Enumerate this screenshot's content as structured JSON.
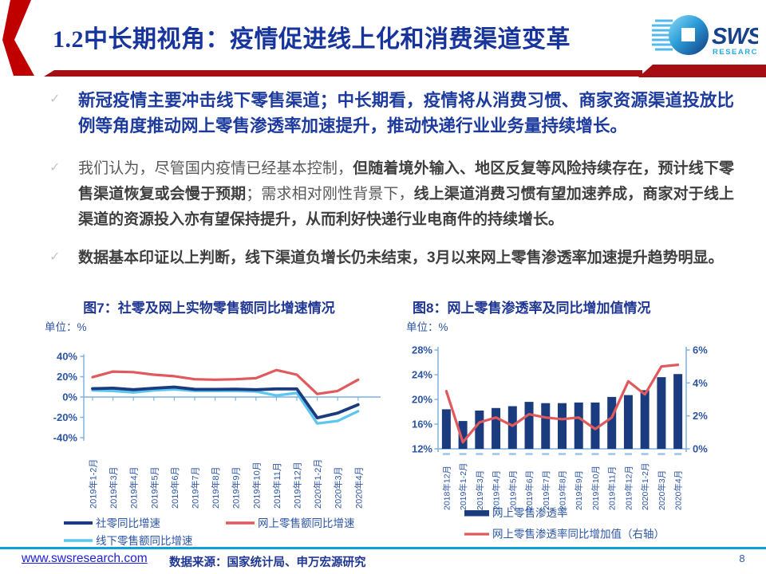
{
  "colors": {
    "brand_red_chevron": "#C00000",
    "brand_dark_red_bar": "#A50E13",
    "title_blue": "#17349C",
    "bullet_navy": "#1D3B9E",
    "body_gray": "#595959",
    "body_dark_gray": "#3F3F3F",
    "chart_navy": "#1A3B7E",
    "chart_red": "#E0595C",
    "chart_light_blue": "#5BC6F2",
    "axis_light_blue": "#7FB2DF",
    "axis_label_blue": "#2C55A5",
    "footer_rule_cyan": "#0FA0D8",
    "link_blue": "#2020DD",
    "logo_navy": "#16418C",
    "logo_cyan": "#29ABE2"
  },
  "header": {
    "title_number": "1.2",
    "title_text": "中长期视角：疫情促进线上化和消费渠道变革",
    "logo_sws": "SWS",
    "logo_research": "RESEARCH"
  },
  "bullet_icon": "✓",
  "bullets": [
    {
      "segments": [
        {
          "style": "navy-bold",
          "text": "新冠疫情主要冲击线下零售渠道；中长期看，疫情将从消费习惯、商家资源渠道投放比例等角度推动网上零售渗透率加速提升，推动快递行业业务量持续增长。"
        }
      ]
    },
    {
      "segments": [
        {
          "style": "normal",
          "text": "我们认为，尽管国内疫情已经基本控制，"
        },
        {
          "style": "bold",
          "text": "但随着境外输入、地区反复等风险持续存在，预计线下零售渠道恢复或会慢于预期"
        },
        {
          "style": "normal",
          "text": "；需求相对刚性背景下，"
        },
        {
          "style": "bold",
          "text": "线上渠道消费习惯有望加速养成，商家对于线上渠道的资源投入亦有望保持提升，从而利好快递行业电商件的持续增长。"
        }
      ]
    },
    {
      "segments": [
        {
          "style": "bold",
          "text": "数据基本印证以上判断，线下渠道负增长仍未结束，3月以来网上零售渗透率加速提升趋势明显。"
        }
      ]
    }
  ],
  "chart_data": [
    {
      "type": "line",
      "title": "图7：社零及网上实物零售额同比增速情况",
      "unit_label": "单位：%",
      "categories": [
        "2019年1-2月",
        "2019年3月",
        "2019年4月",
        "2019年5月",
        "2019年6月",
        "2019年7月",
        "2019年8月",
        "2019年9月",
        "2019年10月",
        "2019年11月",
        "2019年12月",
        "2020年1-2月",
        "2020年3月",
        "2020年4月"
      ],
      "series": [
        {
          "name": "社零同比增速",
          "color": "#1A3B7E",
          "values": [
            8.2,
            8.7,
            7.2,
            8.6,
            9.8,
            7.6,
            7.5,
            7.8,
            7.2,
            8.0,
            8.0,
            -20.5,
            -15.8,
            -7.5
          ]
        },
        {
          "name": "网上零售额同比增速",
          "color": "#E0595C",
          "values": [
            19.5,
            25,
            24.5,
            22,
            20.5,
            17.5,
            17,
            17.5,
            18.5,
            26.5,
            22,
            3,
            6,
            17
          ]
        },
        {
          "name": "线下零售额同比增速",
          "color": "#5BC6F2",
          "values": [
            6.5,
            6,
            4.5,
            6.5,
            7.5,
            6,
            6,
            6,
            5.5,
            1.5,
            4,
            -26,
            -23.5,
            -14
          ]
        }
      ],
      "ylim": [
        -40,
        40
      ],
      "ytick_step": 20,
      "grid": false,
      "legend_position": "bottom"
    },
    {
      "type": "bar+line",
      "title": "图8：网上零售渗透率及同比增加值情况",
      "unit_label": "单位：%",
      "categories": [
        "2018年12月",
        "2019年1-2月",
        "2019年3月",
        "2019年4月",
        "2019年5月",
        "2019年6月",
        "2019年7月",
        "2019年8月",
        "2019年9月",
        "2019年10月",
        "2019年11月",
        "2019年12月",
        "2020年1-2月",
        "2020年3月",
        "2020年4月"
      ],
      "bar_series": {
        "name": "网上零售渗透率",
        "color": "#1A3B7E",
        "values": [
          18.4,
          16.5,
          18.2,
          18.6,
          18.9,
          19.6,
          19.4,
          19.4,
          19.5,
          19.5,
          20.4,
          20.7,
          21.5,
          23.6,
          24.1
        ]
      },
      "line_series": {
        "name": "网上零售渗透率同比增加值（右轴）",
        "color": "#E0595C",
        "values": [
          3.5,
          0.4,
          1.6,
          1.9,
          1.4,
          2.1,
          1.9,
          1.8,
          1.9,
          1.2,
          1.9,
          4.1,
          3.3,
          5.0,
          5.1
        ]
      },
      "left_axis": {
        "min": 12,
        "max": 28,
        "step": 4
      },
      "right_axis": {
        "min": 0,
        "max": 6,
        "step": 2
      },
      "grid": false,
      "legend_position": "bottom"
    }
  ],
  "footer": {
    "url_text": "www.swsresearch.com",
    "source_text": "数据来源：国家统计局、申万宏源研究",
    "page_number": "8"
  }
}
